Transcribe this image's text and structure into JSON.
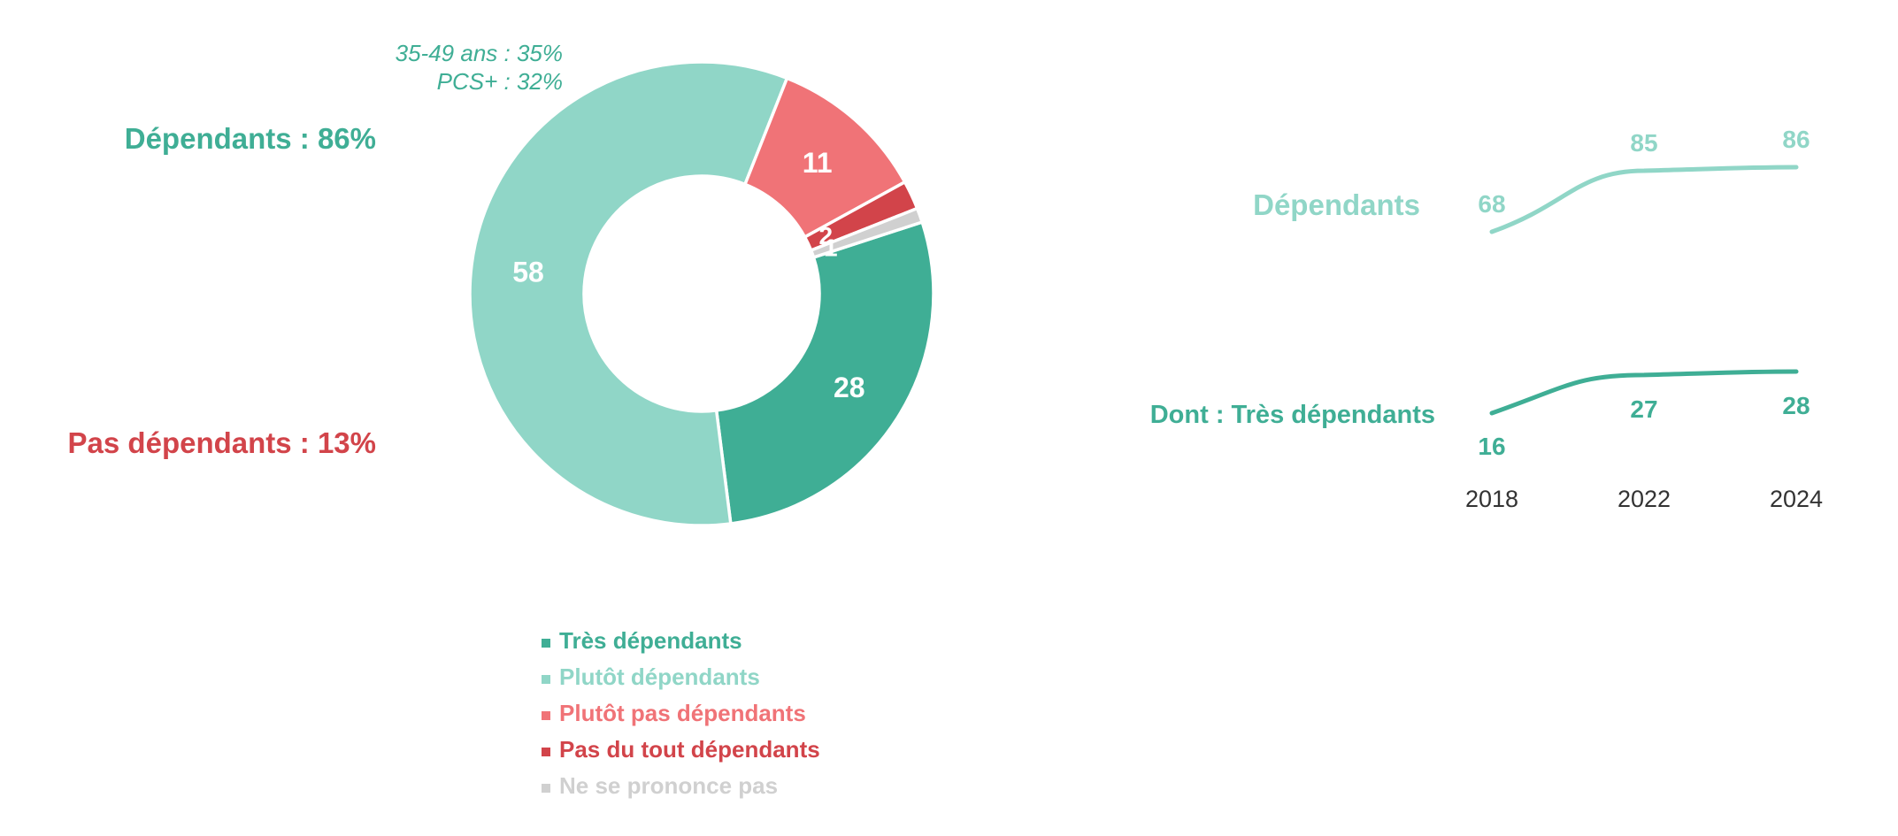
{
  "chart_data": [
    {
      "type": "pie",
      "variant": "donut",
      "slices": [
        {
          "label": "Très dépendants",
          "value": 28,
          "color": "#3fae95"
        },
        {
          "label": "Plutôt dépendants",
          "value": 58,
          "color": "#90d6c7"
        },
        {
          "label": "Plutôt pas dépendants",
          "value": 11,
          "color": "#f07377"
        },
        {
          "label": "Pas du tout dépendants",
          "value": 2,
          "color": "#d2444a"
        },
        {
          "label": "Ne se prononce pas",
          "value": 1,
          "color": "#d0d0d0"
        }
      ],
      "legend_position": "bottom",
      "group_labels": [
        {
          "text": "Dépendants : 86%",
          "color": "#3fae95"
        },
        {
          "text": "Pas dépendants : 13%",
          "color": "#d2444a"
        }
      ],
      "annotations": [
        "35-49 ans : 35%",
        "PCS+ : 32%"
      ]
    },
    {
      "type": "line",
      "x": [
        "2018",
        "2022",
        "2024"
      ],
      "series": [
        {
          "name": "Dépendants",
          "values": [
            68,
            85,
            86
          ],
          "color": "#90d6c7"
        },
        {
          "name": "Dont : Très dépendants",
          "values": [
            16,
            27,
            28
          ],
          "color": "#3fae95"
        }
      ],
      "grid": false
    }
  ]
}
